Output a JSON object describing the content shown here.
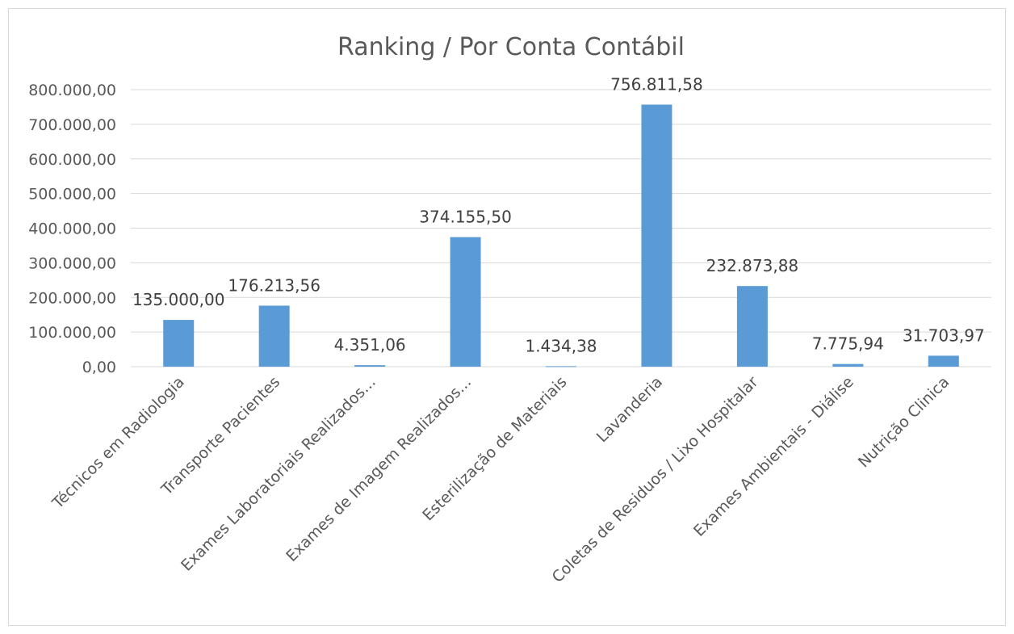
{
  "chart_data": {
    "type": "bar",
    "title": "Ranking / Por Conta Contábil",
    "xlabel": "",
    "ylabel": "",
    "ylim": [
      0,
      800000
    ],
    "grid": true,
    "legend": "none",
    "bar_color": "#5b9bd5",
    "y_ticks": [
      0,
      100000,
      200000,
      300000,
      400000,
      500000,
      600000,
      700000,
      800000
    ],
    "y_tick_labels": [
      "0,00",
      "100.000,00",
      "200.000,00",
      "300.000,00",
      "400.000,00",
      "500.000,00",
      "600.000,00",
      "700.000,00",
      "800.000,00"
    ],
    "categories": [
      "Técnicos em Radiologia",
      "Transporte Pacientes",
      "Exames Laboratoriais Realizados...",
      "Exames de Imagem Realizados...",
      "Esterilização de Materiais",
      "Lavanderia",
      "Coletas de Residuos / Lixo Hospitalar",
      "Exames Ambientais - Diálise",
      "Nutrição Clinica"
    ],
    "values": [
      135000.0,
      176213.56,
      4351.06,
      374155.5,
      1434.38,
      756811.58,
      232873.88,
      7775.94,
      31703.97
    ],
    "value_labels": [
      "135.000,00",
      "176.213,56",
      "4.351,06",
      "374.155,50",
      "1.434,38",
      "756.811,58",
      "232.873,88",
      "7.775,94",
      "31.703,97"
    ]
  }
}
